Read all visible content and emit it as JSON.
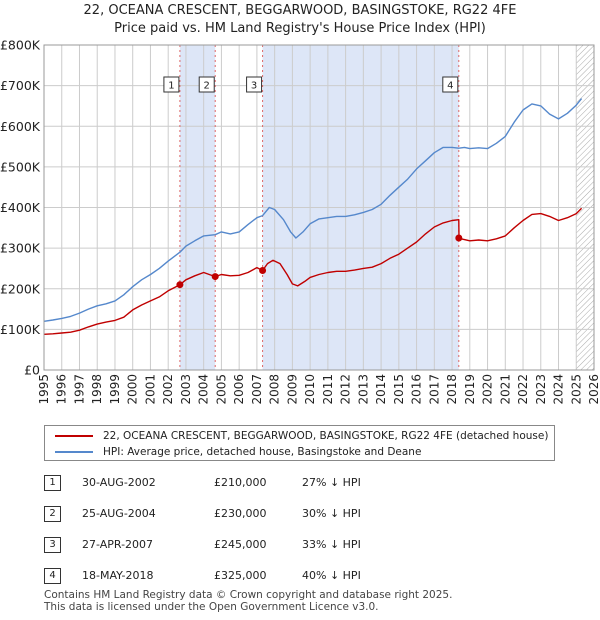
{
  "header": {
    "title_line1": "22, OCEANA CRESCENT, BEGGARWOOD, BASINGSTOKE, RG22 4FE",
    "title_line2": "Price paid vs. HM Land Registry's House Price Index (HPI)"
  },
  "colors": {
    "property_line": "#c00000",
    "hpi_line": "#5588cc",
    "sale_shade": "#dde6f7",
    "sale_vline": "#dd6666",
    "grid": "#cccccc"
  },
  "chart_data": {
    "type": "line",
    "ylim": [
      0,
      800000
    ],
    "xlim": [
      1995,
      2026
    ],
    "yticks": [
      {
        "value": 0,
        "label": "£0"
      },
      {
        "value": 100000,
        "label": "£100K"
      },
      {
        "value": 200000,
        "label": "£200K"
      },
      {
        "value": 300000,
        "label": "£300K"
      },
      {
        "value": 400000,
        "label": "£400K"
      },
      {
        "value": 500000,
        "label": "£500K"
      },
      {
        "value": 600000,
        "label": "£600K"
      },
      {
        "value": 700000,
        "label": "£700K"
      },
      {
        "value": 800000,
        "label": "£800K"
      }
    ],
    "xticks": [
      "1995",
      "1996",
      "1997",
      "1998",
      "1999",
      "2000",
      "2001",
      "2002",
      "2003",
      "2004",
      "2005",
      "2006",
      "2007",
      "2008",
      "2009",
      "2010",
      "2011",
      "2012",
      "2013",
      "2014",
      "2015",
      "2016",
      "2017",
      "2018",
      "2019",
      "2020",
      "2021",
      "2022",
      "2023",
      "2024",
      "2025",
      "2026"
    ],
    "shaded_ranges": [
      [
        2002.66,
        2004.65
      ],
      [
        2007.32,
        2018.38
      ]
    ],
    "hatched_from": 2025.0,
    "series": [
      {
        "name": "22, OCEANA CRESCENT, BEGGARWOOD, BASINGSTOKE, RG22 4FE (detached house)",
        "color": "#c00000",
        "points": [
          [
            1995.0,
            88000
          ],
          [
            1995.5,
            89000
          ],
          [
            1996.0,
            91000
          ],
          [
            1996.5,
            93000
          ],
          [
            1997.0,
            98000
          ],
          [
            1997.5,
            106000
          ],
          [
            1998.0,
            113000
          ],
          [
            1998.5,
            118000
          ],
          [
            1999.0,
            122000
          ],
          [
            1999.5,
            130000
          ],
          [
            2000.0,
            148000
          ],
          [
            2000.5,
            160000
          ],
          [
            2001.0,
            170000
          ],
          [
            2001.5,
            180000
          ],
          [
            2002.0,
            195000
          ],
          [
            2002.66,
            210000
          ],
          [
            2003.0,
            222000
          ],
          [
            2003.5,
            232000
          ],
          [
            2004.0,
            240000
          ],
          [
            2004.65,
            230000
          ],
          [
            2005.0,
            235000
          ],
          [
            2005.5,
            232000
          ],
          [
            2006.0,
            233000
          ],
          [
            2006.5,
            240000
          ],
          [
            2007.0,
            252000
          ],
          [
            2007.32,
            245000
          ],
          [
            2007.6,
            262000
          ],
          [
            2007.9,
            270000
          ],
          [
            2008.3,
            262000
          ],
          [
            2008.7,
            235000
          ],
          [
            2009.0,
            212000
          ],
          [
            2009.3,
            207000
          ],
          [
            2009.7,
            218000
          ],
          [
            2010.0,
            228000
          ],
          [
            2010.5,
            235000
          ],
          [
            2011.0,
            240000
          ],
          [
            2011.5,
            243000
          ],
          [
            2012.0,
            243000
          ],
          [
            2012.5,
            246000
          ],
          [
            2013.0,
            250000
          ],
          [
            2013.5,
            253000
          ],
          [
            2014.0,
            262000
          ],
          [
            2014.5,
            275000
          ],
          [
            2015.0,
            285000
          ],
          [
            2015.5,
            300000
          ],
          [
            2016.0,
            315000
          ],
          [
            2016.5,
            335000
          ],
          [
            2017.0,
            352000
          ],
          [
            2017.5,
            362000
          ],
          [
            2018.0,
            368000
          ],
          [
            2018.38,
            370000
          ],
          [
            2018.39,
            325000
          ],
          [
            2018.6,
            322000
          ],
          [
            2019.0,
            318000
          ],
          [
            2019.5,
            320000
          ],
          [
            2020.0,
            318000
          ],
          [
            2020.5,
            323000
          ],
          [
            2021.0,
            330000
          ],
          [
            2021.5,
            350000
          ],
          [
            2022.0,
            368000
          ],
          [
            2022.5,
            383000
          ],
          [
            2023.0,
            385000
          ],
          [
            2023.5,
            378000
          ],
          [
            2024.0,
            368000
          ],
          [
            2024.5,
            375000
          ],
          [
            2025.0,
            385000
          ],
          [
            2025.3,
            398000
          ]
        ]
      },
      {
        "name": "HPI: Average price, detached house, Basingstoke and Deane",
        "color": "#5588cc",
        "points": [
          [
            1995.0,
            120000
          ],
          [
            1995.5,
            123000
          ],
          [
            1996.0,
            127000
          ],
          [
            1996.5,
            132000
          ],
          [
            1997.0,
            140000
          ],
          [
            1997.5,
            150000
          ],
          [
            1998.0,
            158000
          ],
          [
            1998.5,
            163000
          ],
          [
            1999.0,
            170000
          ],
          [
            1999.5,
            185000
          ],
          [
            2000.0,
            205000
          ],
          [
            2000.5,
            222000
          ],
          [
            2001.0,
            235000
          ],
          [
            2001.5,
            250000
          ],
          [
            2002.0,
            268000
          ],
          [
            2002.66,
            290000
          ],
          [
            2003.0,
            305000
          ],
          [
            2003.5,
            318000
          ],
          [
            2004.0,
            330000
          ],
          [
            2004.65,
            333000
          ],
          [
            2005.0,
            340000
          ],
          [
            2005.5,
            335000
          ],
          [
            2006.0,
            340000
          ],
          [
            2006.5,
            358000
          ],
          [
            2007.0,
            375000
          ],
          [
            2007.32,
            380000
          ],
          [
            2007.7,
            400000
          ],
          [
            2008.0,
            395000
          ],
          [
            2008.5,
            370000
          ],
          [
            2008.9,
            340000
          ],
          [
            2009.2,
            325000
          ],
          [
            2009.6,
            340000
          ],
          [
            2010.0,
            360000
          ],
          [
            2010.5,
            372000
          ],
          [
            2011.0,
            375000
          ],
          [
            2011.5,
            378000
          ],
          [
            2012.0,
            378000
          ],
          [
            2012.5,
            382000
          ],
          [
            2013.0,
            388000
          ],
          [
            2013.5,
            395000
          ],
          [
            2014.0,
            408000
          ],
          [
            2014.5,
            430000
          ],
          [
            2015.0,
            450000
          ],
          [
            2015.5,
            470000
          ],
          [
            2016.0,
            495000
          ],
          [
            2016.5,
            515000
          ],
          [
            2017.0,
            535000
          ],
          [
            2017.5,
            548000
          ],
          [
            2018.0,
            548000
          ],
          [
            2018.38,
            546000
          ],
          [
            2018.7,
            548000
          ],
          [
            2019.0,
            545000
          ],
          [
            2019.5,
            547000
          ],
          [
            2020.0,
            545000
          ],
          [
            2020.5,
            558000
          ],
          [
            2021.0,
            575000
          ],
          [
            2021.5,
            610000
          ],
          [
            2022.0,
            640000
          ],
          [
            2022.5,
            655000
          ],
          [
            2023.0,
            650000
          ],
          [
            2023.5,
            630000
          ],
          [
            2024.0,
            618000
          ],
          [
            2024.5,
            632000
          ],
          [
            2025.0,
            652000
          ],
          [
            2025.3,
            668000
          ]
        ]
      }
    ],
    "sales": [
      {
        "label": "1",
        "x": 2002.66,
        "price": 210000
      },
      {
        "label": "2",
        "x": 2004.65,
        "price": 230000
      },
      {
        "label": "3",
        "x": 2007.32,
        "price": 245000
      },
      {
        "label": "4",
        "x": 2018.38,
        "price": 325000
      }
    ]
  },
  "legend": {
    "property_label": "22, OCEANA CRESCENT, BEGGARWOOD, BASINGSTOKE, RG22 4FE (detached house)",
    "hpi_label": "HPI: Average price, detached house, Basingstoke and Deane"
  },
  "sales_table": [
    {
      "num": "1",
      "date": "30-AUG-2002",
      "price": "£210,000",
      "hpi": "27% ↓ HPI"
    },
    {
      "num": "2",
      "date": "25-AUG-2004",
      "price": "£230,000",
      "hpi": "30% ↓ HPI"
    },
    {
      "num": "3",
      "date": "27-APR-2007",
      "price": "£245,000",
      "hpi": "33% ↓ HPI"
    },
    {
      "num": "4",
      "date": "18-MAY-2018",
      "price": "£325,000",
      "hpi": "40% ↓ HPI"
    }
  ],
  "footer": {
    "line1": "Contains HM Land Registry data © Crown copyright and database right 2025.",
    "line2": "This data is licensed under the Open Government Licence v3.0."
  }
}
